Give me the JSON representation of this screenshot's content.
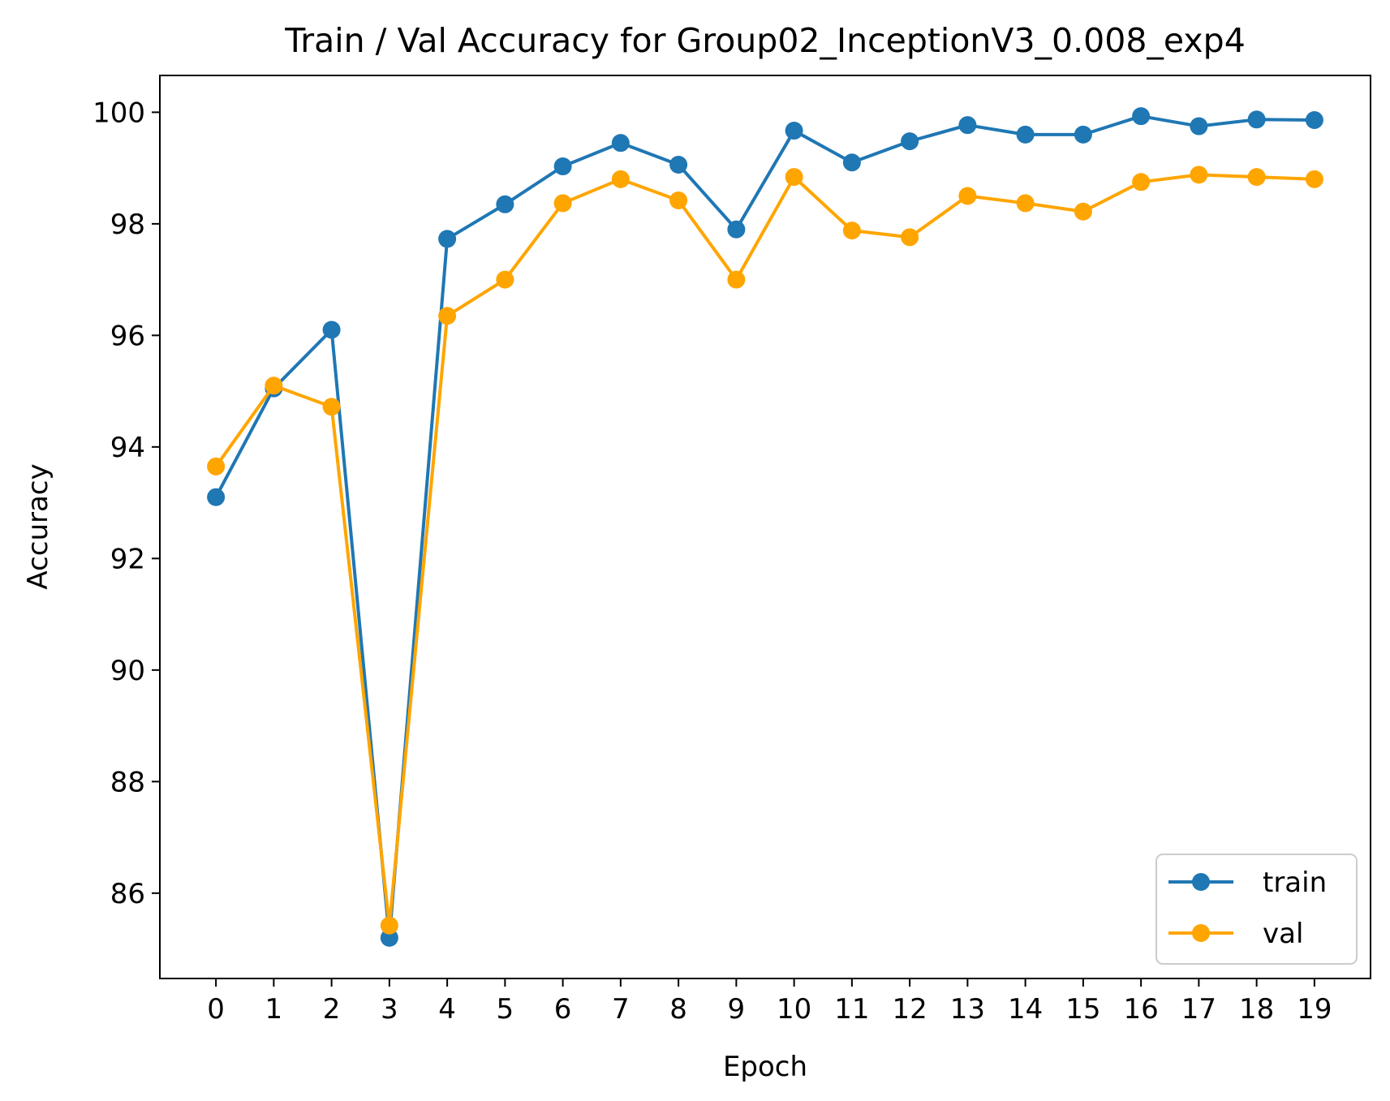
{
  "chart_data": {
    "type": "line",
    "title": "Train / Val Accuracy for Group02_InceptionV3_0.008_exp4",
    "xlabel": "Epoch",
    "ylabel": "Accuracy",
    "x": [
      0,
      1,
      2,
      3,
      4,
      5,
      6,
      7,
      8,
      9,
      10,
      11,
      12,
      13,
      14,
      15,
      16,
      17,
      18,
      19
    ],
    "xticks": [
      "0",
      "1",
      "2",
      "3",
      "4",
      "5",
      "6",
      "7",
      "8",
      "9",
      "10",
      "11",
      "12",
      "13",
      "14",
      "15",
      "16",
      "17",
      "18",
      "19"
    ],
    "yticks": [
      86,
      88,
      90,
      92,
      94,
      96,
      98,
      100
    ],
    "xlim": [
      -0.97,
      19.97
    ],
    "ylim": [
      84.47,
      100.66
    ],
    "grid": false,
    "legend_position": "lower right",
    "series": [
      {
        "name": "train",
        "color": "#1f77b4",
        "marker": "circle",
        "values": [
          93.1,
          95.05,
          96.1,
          85.2,
          97.73,
          98.35,
          99.03,
          99.45,
          99.06,
          97.9,
          99.67,
          99.1,
          99.48,
          99.77,
          99.6,
          99.6,
          99.93,
          99.75,
          99.87,
          99.86
        ]
      },
      {
        "name": "val",
        "color": "#ffa500",
        "marker": "circle",
        "values": [
          93.65,
          95.1,
          94.72,
          85.42,
          96.35,
          97.0,
          98.37,
          98.8,
          98.42,
          97.0,
          98.84,
          97.88,
          97.76,
          98.5,
          98.37,
          98.22,
          98.75,
          98.88,
          98.84,
          98.8
        ]
      }
    ]
  }
}
